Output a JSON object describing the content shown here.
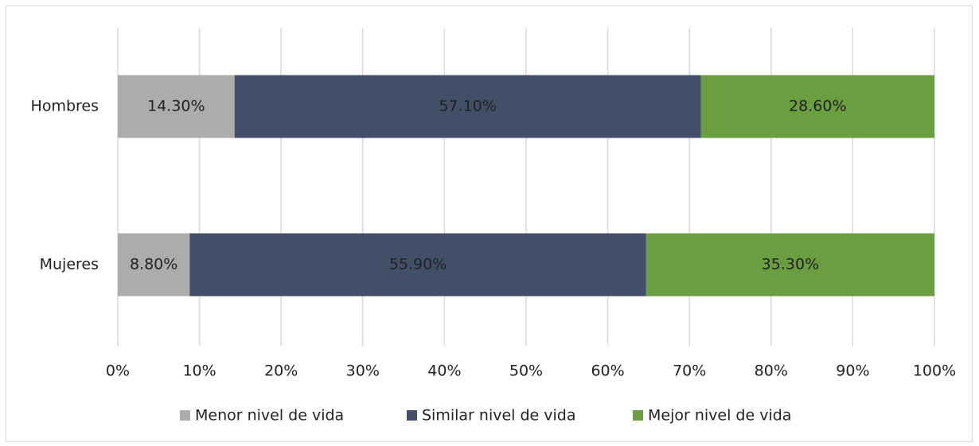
{
  "chart_data": {
    "type": "stacked_barh",
    "categories": [
      "Hombres",
      "Mujeres"
    ],
    "series": [
      {
        "name": "Menor nivel de vida",
        "color": "#aeabab",
        "values": [
          14.3,
          8.8
        ],
        "value_labels": [
          "14.30%",
          "8.80%"
        ]
      },
      {
        "name": "Similar nivel de vida",
        "color": "#434e69",
        "values": [
          57.1,
          55.9
        ],
        "value_labels": [
          "57.10%",
          "55.90%"
        ]
      },
      {
        "name": "Mejor nivel de vida",
        "color": "#6a9e41",
        "values": [
          28.6,
          35.3
        ],
        "value_labels": [
          "28.60%",
          "35.30%"
        ]
      }
    ],
    "xlim": [
      0,
      100
    ],
    "xticks": [
      {
        "value": 0,
        "label": "0%"
      },
      {
        "value": 10,
        "label": "10%"
      },
      {
        "value": 20,
        "label": "20%"
      },
      {
        "value": 30,
        "label": "30%"
      },
      {
        "value": 40,
        "label": "40%"
      },
      {
        "value": 50,
        "label": "50%"
      },
      {
        "value": 60,
        "label": "60%"
      },
      {
        "value": 70,
        "label": "70%"
      },
      {
        "value": 80,
        "label": "80%"
      },
      {
        "value": 90,
        "label": "90%"
      },
      {
        "value": 100,
        "label": "100%"
      }
    ],
    "grid": true,
    "legend": "bottom"
  }
}
